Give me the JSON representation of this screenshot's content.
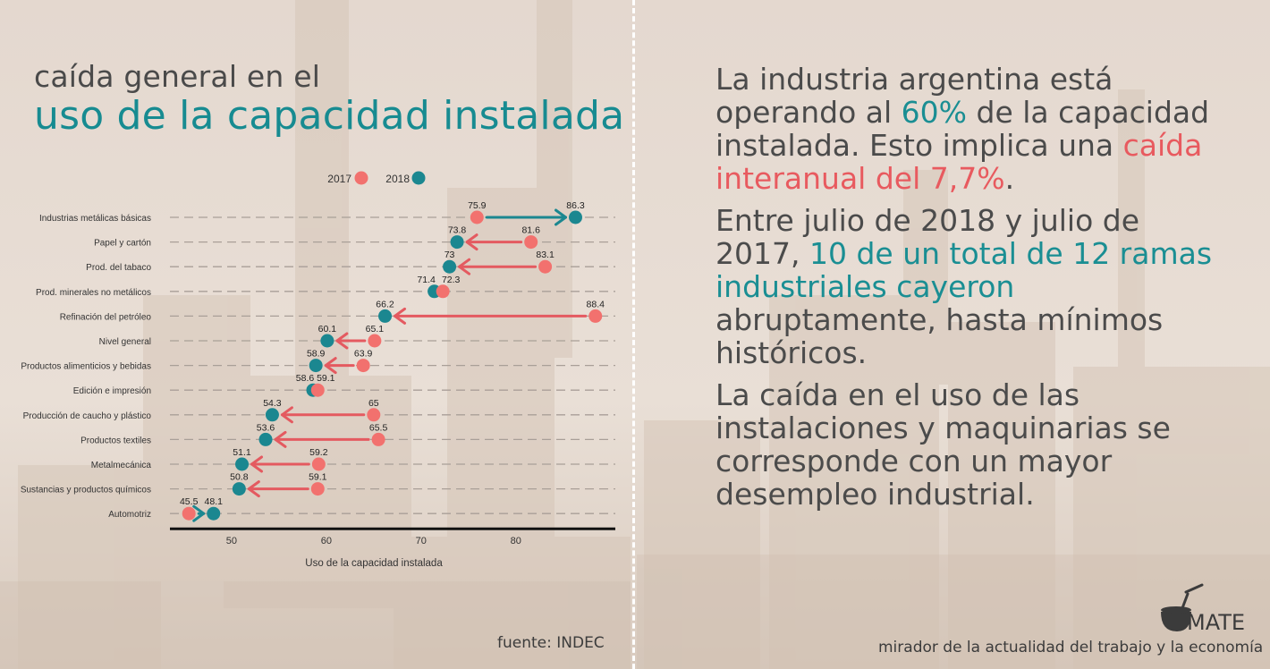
{
  "heading": {
    "small": "caída general en el",
    "big": "uso de la capacidad instalada"
  },
  "chart_data": {
    "type": "dumbbell",
    "series": [
      {
        "name": "2017",
        "color": "#f2716e"
      },
      {
        "name": "2018",
        "color": "#1b8790"
      }
    ],
    "categories": [
      "Industrias metálicas básicas",
      "Papel y cartón",
      "Prod. del tabaco",
      "Prod. minerales no metálicos",
      "Refinación del petróleo",
      "Nivel general",
      "Productos alimenticios y bebidas",
      "Edición e impresión",
      "Producción de caucho y plástico",
      "Productos textiles",
      "Metalmecánica",
      "Sustancias y productos químicos",
      "Automotriz"
    ],
    "values_2017": [
      75.9,
      81.6,
      83.1,
      72.3,
      88.4,
      65.1,
      63.9,
      59.1,
      65,
      65.5,
      59.2,
      59.1,
      45.5
    ],
    "values_2018": [
      86.3,
      73.8,
      73,
      71.4,
      66.2,
      60.1,
      58.9,
      58.6,
      54.3,
      53.6,
      51.1,
      50.8,
      48.1
    ],
    "labels_2017": [
      "75.9",
      "81.6",
      "83.1",
      "72.3",
      "88.4",
      "65.1",
      "63.9",
      "59.1",
      "65",
      "65.5",
      "59.2",
      "59.1",
      "45.5"
    ],
    "labels_2018": [
      "86.3",
      "73.8",
      "73",
      "71.4",
      "66.2",
      "60.1",
      "58.9",
      "58.6",
      "54.3",
      "53.6",
      "51.1",
      "50.8",
      "48.1"
    ],
    "xlabel": "Uso de la capacidad instalada",
    "xticks": [
      50,
      60,
      70,
      80
    ],
    "xtick_labels": [
      "50",
      "60",
      "70",
      "80"
    ],
    "xlim": [
      43.5,
      90.5
    ],
    "arrow_color_up": "#1b8790",
    "arrow_color_down": "#e45a60",
    "legend_position": "top"
  },
  "source": "fuente: INDEC",
  "right": {
    "p1_a": "La industria argentina está operando al ",
    "p1_hl1": "60%",
    "p1_b": " de la capacidad instalada. Esto implica una ",
    "p1_hl2": "caída interanual del 7,7%",
    "p1_c": ".",
    "p2_a": "Entre julio de 2018 y julio de 2017, ",
    "p2_hl": "10 de un total de 12 ramas industriales cayeron",
    "p2_b": " abruptamente, hasta mínimos históricos.",
    "p3": "La caída en el uso de las instalaciones y maquinarias se corresponde con un mayor desempleo industrial."
  },
  "brand": {
    "name": "MATE",
    "tagline": "mirador de la actualidad del trabajo y la economía"
  },
  "colors": {
    "teal": "#1a8e93",
    "coral": "#e85a5f",
    "text": "#4b4b4b"
  }
}
